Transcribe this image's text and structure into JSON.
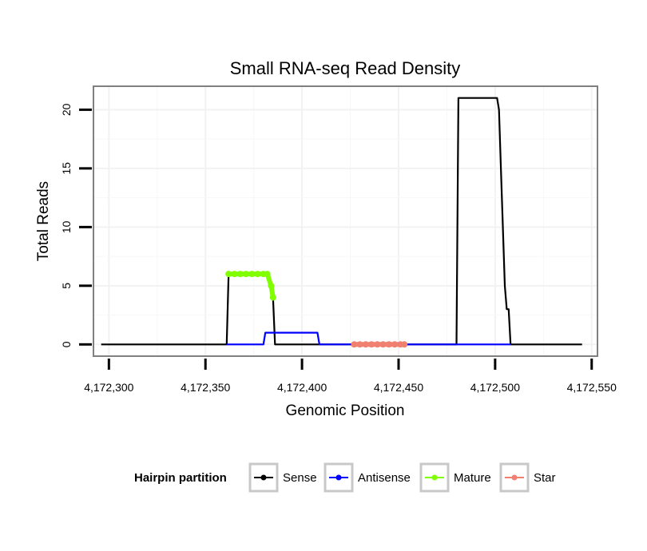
{
  "chart_data": {
    "type": "line",
    "title": "Small RNA-seq Read Density",
    "xlabel": "Genomic Position",
    "ylabel": "Total Reads",
    "xlim": [
      4172292,
      4172553
    ],
    "ylim": [
      -1,
      22
    ],
    "x_ticks": [
      4172300,
      4172350,
      4172400,
      4172450,
      4172500,
      4172550
    ],
    "x_tick_labels": [
      "4,172,300",
      "4,172,350",
      "4,172,400",
      "4,172,450",
      "4,172,500",
      "4,172,550"
    ],
    "y_ticks": [
      0,
      5,
      10,
      15,
      20
    ],
    "y_tick_labels": [
      "0",
      "5",
      "10",
      "15",
      "20"
    ],
    "grid": true,
    "legend": {
      "title": "Hairpin partition",
      "position": "bottom",
      "items": [
        "Sense",
        "Antisense",
        "Mature",
        "Star"
      ]
    },
    "series": [
      {
        "name": "Sense",
        "color": "#000000",
        "style": "line",
        "points": [
          [
            4172296,
            0
          ],
          [
            4172361,
            0
          ],
          [
            4172362,
            6
          ],
          [
            4172382,
            6
          ],
          [
            4172383,
            6
          ],
          [
            4172385,
            4
          ],
          [
            4172386,
            0
          ],
          [
            4172480,
            0
          ],
          [
            4172481,
            21
          ],
          [
            4172501,
            21
          ],
          [
            4172502,
            20
          ],
          [
            4172503,
            15
          ],
          [
            4172505,
            5
          ],
          [
            4172506,
            3
          ],
          [
            4172507,
            3
          ],
          [
            4172508,
            0
          ],
          [
            4172545,
            0
          ]
        ]
      },
      {
        "name": "Antisense",
        "color": "#0000ff",
        "style": "line",
        "points": [
          [
            4172361,
            0
          ],
          [
            4172380,
            0
          ],
          [
            4172381,
            1
          ],
          [
            4172408,
            1
          ],
          [
            4172409,
            0
          ],
          [
            4172508,
            0
          ]
        ]
      },
      {
        "name": "Mature",
        "color": "#7fff00",
        "style": "points",
        "points": [
          [
            4172362,
            6
          ],
          [
            4172365,
            6
          ],
          [
            4172368,
            6
          ],
          [
            4172371,
            6
          ],
          [
            4172374,
            6
          ],
          [
            4172377,
            6
          ],
          [
            4172380,
            6
          ],
          [
            4172382,
            6
          ],
          [
            4172384,
            5
          ],
          [
            4172385,
            4
          ]
        ]
      },
      {
        "name": "Star",
        "color": "#f08070",
        "style": "points",
        "points": [
          [
            4172427,
            0
          ],
          [
            4172430,
            0
          ],
          [
            4172433,
            0
          ],
          [
            4172436,
            0
          ],
          [
            4172439,
            0
          ],
          [
            4172442,
            0
          ],
          [
            4172445,
            0
          ],
          [
            4172448,
            0
          ],
          [
            4172451,
            0
          ],
          [
            4172453,
            0
          ]
        ]
      }
    ]
  }
}
